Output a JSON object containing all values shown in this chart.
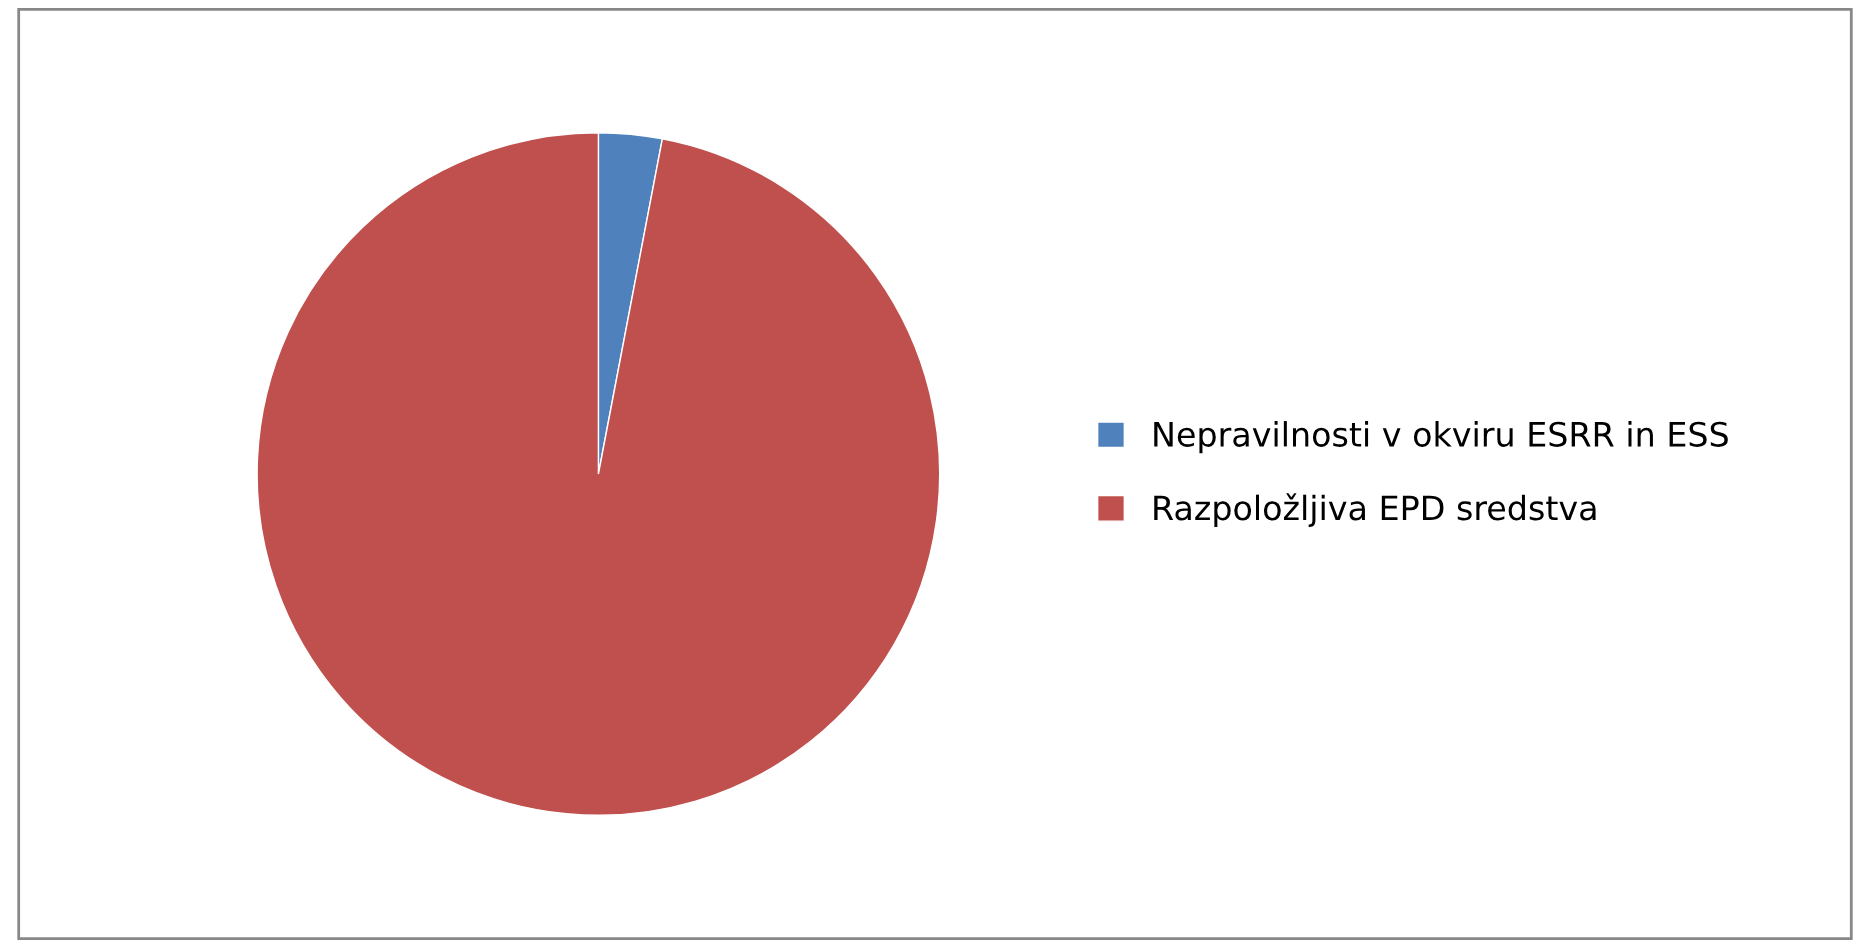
{
  "chart_data": {
    "type": "pie",
    "categories": [
      "Nepravilnosti v okviru ESRR in ESS",
      "Razpoložljiva EPD sredstva"
    ],
    "values": [
      3,
      97
    ],
    "colors": [
      "#4f81bd",
      "#c0504d"
    ],
    "legend": "right"
  }
}
